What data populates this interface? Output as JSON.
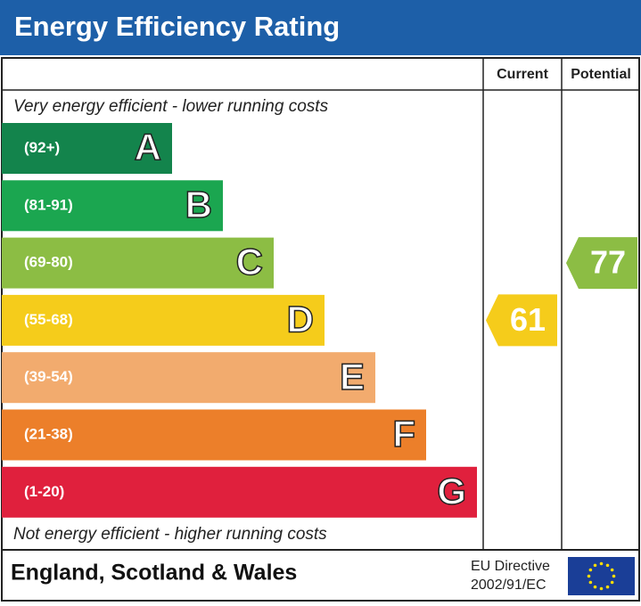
{
  "header": {
    "title": "Energy Efficiency Rating"
  },
  "columns": [
    "Current",
    "Potential"
  ],
  "top_note": "Very energy efficient - lower running costs",
  "bands": [
    {
      "range": "(92+)",
      "letter": "A",
      "color": "#13844c"
    },
    {
      "range": "(81-91)",
      "letter": "B",
      "color": "#1ba650"
    },
    {
      "range": "(69-80)",
      "letter": "C",
      "color": "#8cbd44"
    },
    {
      "range": "(55-68)",
      "letter": "D",
      "color": "#f5cc1b"
    },
    {
      "range": "(39-54)",
      "letter": "E",
      "color": "#f2ab6e"
    },
    {
      "range": "(21-38)",
      "letter": "F",
      "color": "#ec7f2a"
    },
    {
      "range": "(1-20)",
      "letter": "G",
      "color": "#e0203d"
    }
  ],
  "bottom_note": "Not energy efficient - higher running costs",
  "ratings": [
    61,
    77
  ],
  "footer": {
    "region": "England, Scotland & Wales",
    "directive": [
      "EU Directive",
      "2002/91/EC"
    ]
  }
}
